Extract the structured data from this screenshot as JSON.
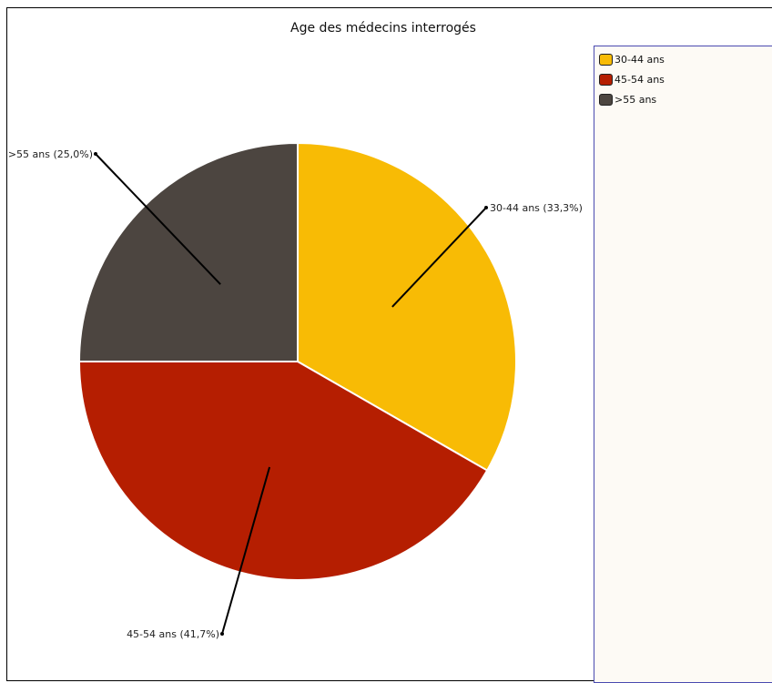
{
  "chart_data": {
    "type": "pie",
    "title": "Age des médecins interrogés",
    "slices": [
      {
        "name": "30-44 ans",
        "value": 33.3,
        "label": "30-44 ans (33,3%)",
        "color": "#f8bb05"
      },
      {
        "name": "45-54 ans",
        "value": 41.7,
        "label": "45-54 ans (41,7%)",
        "color": "#b51e01"
      },
      {
        "name": ">55 ans",
        "value": 25.0,
        "label": ">55 ans (25,0%)",
        "color": "#4c4540"
      }
    ],
    "legend_position": "right"
  },
  "colors": {
    "legend_border": "#4a4ab0",
    "legend_background": "#fdfaf5",
    "leader_line": "#000000"
  }
}
